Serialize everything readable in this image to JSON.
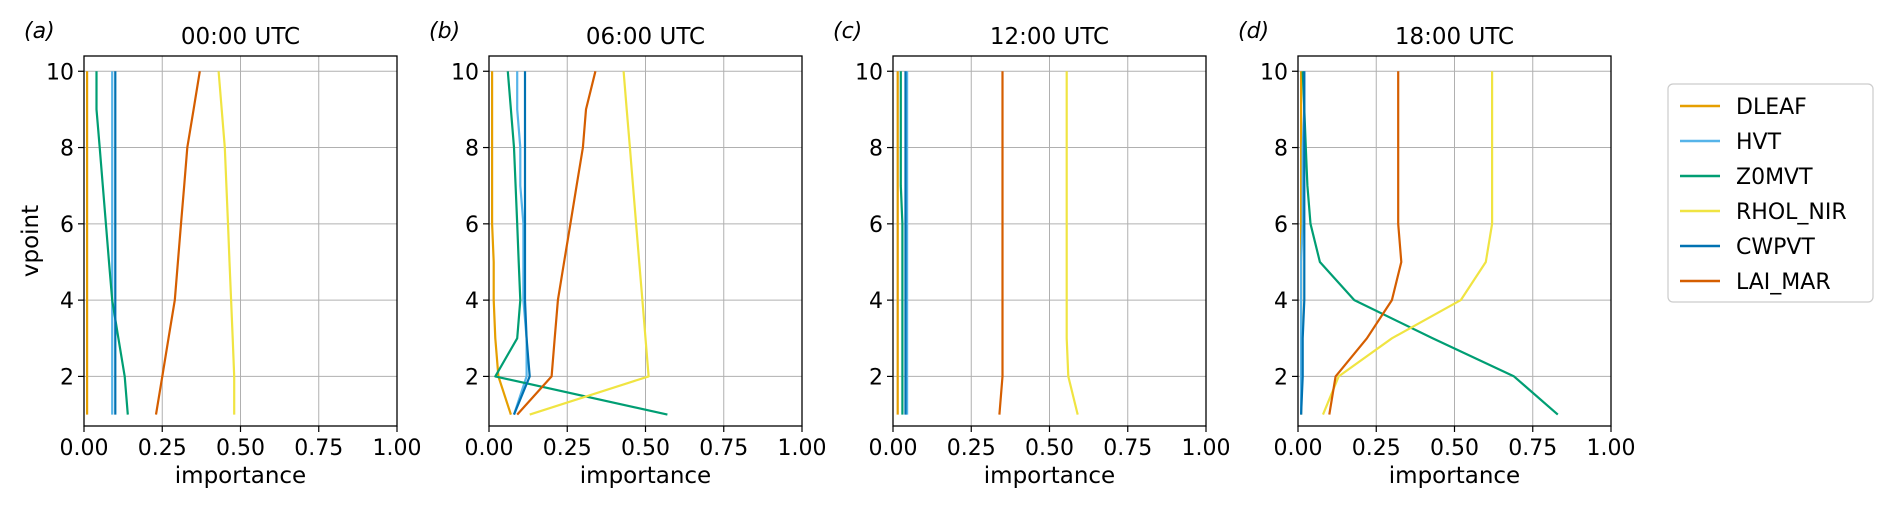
{
  "colors": {
    "DLEAF": "#E69F00",
    "HVT": "#56B4E9",
    "Z0MVT": "#009E73",
    "RHOL_NIR": "#F0E442",
    "CWPVT": "#0072B2",
    "LAI_MAR": "#D55E00"
  },
  "legend": {
    "placement": "right",
    "entries": [
      "DLEAF",
      "HVT",
      "Z0MVT",
      "RHOL_NIR",
      "CWPVT",
      "LAI_MAR"
    ]
  },
  "chart_data": [
    {
      "type": "line",
      "panel_label": "(a)",
      "title": "00:00 UTC",
      "xlabel": "importance",
      "ylabel": "vpoint",
      "xlim": [
        0,
        1
      ],
      "ylim": [
        0.7,
        10.4
      ],
      "xticks": [
        "0.00",
        "0.25",
        "0.50",
        "0.75",
        "1.00"
      ],
      "yticks": [
        "2",
        "4",
        "6",
        "8",
        "10"
      ],
      "grid": true,
      "y": [
        1,
        2,
        3,
        4,
        5,
        6,
        7,
        8,
        9,
        10
      ],
      "series": [
        {
          "name": "DLEAF",
          "values": [
            0.01,
            0.01,
            0.01,
            0.01,
            0.01,
            0.01,
            0.01,
            0.01,
            0.01,
            0.01
          ]
        },
        {
          "name": "HVT",
          "values": [
            0.09,
            0.09,
            0.09,
            0.09,
            0.09,
            0.09,
            0.09,
            0.09,
            0.09,
            0.09
          ]
        },
        {
          "name": "Z0MVT",
          "values": [
            0.14,
            0.13,
            0.11,
            0.09,
            0.08,
            0.07,
            0.06,
            0.05,
            0.04,
            0.04
          ]
        },
        {
          "name": "RHOL_NIR",
          "values": [
            0.48,
            0.48,
            0.475,
            0.47,
            0.465,
            0.46,
            0.455,
            0.45,
            0.44,
            0.43
          ]
        },
        {
          "name": "CWPVT",
          "values": [
            0.1,
            0.1,
            0.1,
            0.1,
            0.1,
            0.1,
            0.1,
            0.1,
            0.1,
            0.1
          ]
        },
        {
          "name": "LAI_MAR",
          "values": [
            0.23,
            0.25,
            0.27,
            0.29,
            0.3,
            0.31,
            0.32,
            0.33,
            0.35,
            0.37
          ]
        }
      ]
    },
    {
      "type": "line",
      "panel_label": "(b)",
      "title": "06:00 UTC",
      "xlabel": "importance",
      "ylabel": "",
      "xlim": [
        0,
        1
      ],
      "ylim": [
        0.7,
        10.4
      ],
      "xticks": [
        "0.00",
        "0.25",
        "0.50",
        "0.75",
        "1.00"
      ],
      "yticks": [
        "2",
        "4",
        "6",
        "8",
        "10"
      ],
      "grid": true,
      "y": [
        1,
        2,
        3,
        4,
        5,
        6,
        7,
        8,
        9,
        10
      ],
      "series": [
        {
          "name": "DLEAF",
          "values": [
            0.07,
            0.03,
            0.02,
            0.015,
            0.015,
            0.01,
            0.01,
            0.01,
            0.01,
            0.01
          ]
        },
        {
          "name": "HVT",
          "values": [
            0.08,
            0.12,
            0.12,
            0.11,
            0.11,
            0.11,
            0.1,
            0.1,
            0.09,
            0.09
          ]
        },
        {
          "name": "Z0MVT",
          "values": [
            0.57,
            0.02,
            0.09,
            0.1,
            0.095,
            0.09,
            0.085,
            0.08,
            0.07,
            0.06
          ]
        },
        {
          "name": "RHOL_NIR",
          "values": [
            0.13,
            0.51,
            0.5,
            0.49,
            0.48,
            0.47,
            0.46,
            0.45,
            0.44,
            0.43
          ]
        },
        {
          "name": "CWPVT",
          "values": [
            0.08,
            0.13,
            0.12,
            0.115,
            0.115,
            0.115,
            0.115,
            0.115,
            0.115,
            0.115
          ]
        },
        {
          "name": "LAI_MAR",
          "values": [
            0.09,
            0.2,
            0.21,
            0.22,
            0.24,
            0.26,
            0.28,
            0.3,
            0.31,
            0.34
          ]
        }
      ]
    },
    {
      "type": "line",
      "panel_label": "(c)",
      "title": "12:00 UTC",
      "xlabel": "importance",
      "ylabel": "",
      "xlim": [
        0,
        1
      ],
      "ylim": [
        0.7,
        10.4
      ],
      "xticks": [
        "0.00",
        "0.25",
        "0.50",
        "0.75",
        "1.00"
      ],
      "yticks": [
        "2",
        "4",
        "6",
        "8",
        "10"
      ],
      "grid": true,
      "y": [
        1,
        2,
        3,
        4,
        5,
        6,
        7,
        8,
        9,
        10
      ],
      "series": [
        {
          "name": "DLEAF",
          "values": [
            0.015,
            0.015,
            0.015,
            0.015,
            0.015,
            0.015,
            0.015,
            0.015,
            0.015,
            0.015
          ]
        },
        {
          "name": "HVT",
          "values": [
            0.045,
            0.045,
            0.045,
            0.045,
            0.045,
            0.045,
            0.045,
            0.045,
            0.045,
            0.045
          ]
        },
        {
          "name": "Z0MVT",
          "values": [
            0.03,
            0.03,
            0.03,
            0.03,
            0.03,
            0.03,
            0.025,
            0.025,
            0.025,
            0.025
          ]
        },
        {
          "name": "RHOL_NIR",
          "values": [
            0.59,
            0.56,
            0.555,
            0.555,
            0.555,
            0.555,
            0.555,
            0.555,
            0.555,
            0.555
          ]
        },
        {
          "name": "CWPVT",
          "values": [
            0.04,
            0.04,
            0.04,
            0.04,
            0.04,
            0.04,
            0.04,
            0.04,
            0.04,
            0.04
          ]
        },
        {
          "name": "LAI_MAR",
          "values": [
            0.34,
            0.35,
            0.35,
            0.35,
            0.35,
            0.35,
            0.35,
            0.35,
            0.35,
            0.35
          ]
        }
      ]
    },
    {
      "type": "line",
      "panel_label": "(d)",
      "title": "18:00 UTC",
      "xlabel": "importance",
      "ylabel": "",
      "xlim": [
        0,
        1
      ],
      "ylim": [
        0.7,
        10.4
      ],
      "xticks": [
        "0.00",
        "0.25",
        "0.50",
        "0.75",
        "1.00"
      ],
      "yticks": [
        "2",
        "4",
        "6",
        "8",
        "10"
      ],
      "grid": true,
      "y": [
        1,
        2,
        3,
        4,
        5,
        6,
        7,
        8,
        9,
        10
      ],
      "series": [
        {
          "name": "DLEAF",
          "values": [
            0.01,
            0.01,
            0.01,
            0.01,
            0.01,
            0.01,
            0.01,
            0.01,
            0.01,
            0.01
          ]
        },
        {
          "name": "HVT",
          "values": [
            0.01,
            0.01,
            0.01,
            0.01,
            0.01,
            0.015,
            0.015,
            0.015,
            0.02,
            0.02
          ]
        },
        {
          "name": "Z0MVT",
          "values": [
            0.83,
            0.69,
            0.43,
            0.18,
            0.07,
            0.04,
            0.03,
            0.025,
            0.02,
            0.015
          ]
        },
        {
          "name": "RHOL_NIR",
          "values": [
            0.08,
            0.13,
            0.3,
            0.52,
            0.6,
            0.62,
            0.62,
            0.62,
            0.62,
            0.62
          ]
        },
        {
          "name": "CWPVT",
          "values": [
            0.01,
            0.015,
            0.015,
            0.02,
            0.02,
            0.02,
            0.02,
            0.02,
            0.02,
            0.02
          ]
        },
        {
          "name": "LAI_MAR",
          "values": [
            0.1,
            0.12,
            0.22,
            0.3,
            0.33,
            0.32,
            0.32,
            0.32,
            0.32,
            0.32
          ]
        }
      ]
    }
  ]
}
